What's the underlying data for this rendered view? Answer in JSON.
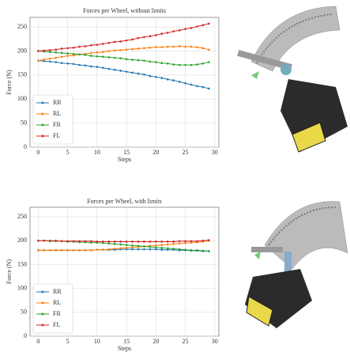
{
  "chart_data": [
    {
      "type": "line",
      "title": "Forces per Wheel, without limits",
      "x_label": "Steps",
      "y_label": "Force (N)",
      "x": [
        0,
        1,
        2,
        3,
        4,
        5,
        6,
        7,
        8,
        9,
        10,
        11,
        12,
        13,
        14,
        15,
        16,
        17,
        18,
        19,
        20,
        21,
        22,
        23,
        24,
        25,
        26,
        27,
        28,
        29
      ],
      "series": [
        {
          "name": "RR",
          "color": "#1f77b4",
          "values": [
            180,
            179,
            178,
            177,
            175,
            174,
            173,
            171,
            170,
            168,
            167,
            165,
            163,
            161,
            159,
            157,
            155,
            153,
            151,
            148,
            146,
            144,
            141,
            139,
            136,
            133,
            130,
            127,
            125,
            122
          ]
        },
        {
          "name": "RL",
          "color": "#ff7f0e",
          "values": [
            180,
            182,
            184,
            186,
            188,
            190,
            191,
            193,
            194,
            196,
            197,
            198,
            200,
            201,
            202,
            203,
            204,
            205,
            206,
            207,
            208,
            208,
            209,
            209,
            210,
            209,
            209,
            208,
            206,
            203
          ]
        },
        {
          "name": "FR",
          "color": "#2ca02c",
          "values": [
            200,
            199,
            198,
            197,
            196,
            195,
            194,
            193,
            192,
            190,
            189,
            188,
            187,
            186,
            185,
            183,
            182,
            181,
            180,
            178,
            177,
            175,
            174,
            172,
            171,
            171,
            171,
            172,
            174,
            177
          ]
        },
        {
          "name": "FL",
          "color": "#d62728",
          "values": [
            200,
            201,
            202,
            203,
            205,
            206,
            207,
            209,
            210,
            212,
            213,
            215,
            217,
            219,
            220,
            222,
            224,
            227,
            229,
            231,
            233,
            236,
            238,
            241,
            243,
            246,
            248,
            251,
            254,
            257
          ]
        }
      ],
      "xlim": [
        -1.4,
        30.7
      ],
      "ylim": [
        0,
        270
      ],
      "xticks": [
        0,
        5,
        10,
        15,
        20,
        25,
        30
      ],
      "yticks": [
        0,
        50,
        100,
        150,
        200,
        250
      ],
      "grid": true,
      "legend": "lower left"
    },
    {
      "type": "line",
      "title": "Forces per Wheel, with limits",
      "x_label": "Steps",
      "y_label": "Force (N)",
      "x": [
        0,
        1,
        2,
        3,
        4,
        5,
        6,
        7,
        8,
        9,
        10,
        11,
        12,
        13,
        14,
        15,
        16,
        17,
        18,
        19,
        20,
        21,
        22,
        23,
        24,
        25,
        26,
        27,
        28,
        29
      ],
      "series": [
        {
          "name": "RR",
          "color": "#1f77b4",
          "values": [
            180,
            180,
            180,
            180,
            180,
            180,
            180,
            180,
            180,
            180,
            181,
            181,
            181,
            181,
            182,
            182,
            182,
            182,
            182,
            182,
            182,
            181,
            181,
            181,
            180,
            180,
            179,
            179,
            178,
            178
          ]
        },
        {
          "name": "RL",
          "color": "#ff7f0e",
          "values": [
            180,
            180,
            180,
            180,
            180,
            180,
            180,
            180,
            180,
            180,
            181,
            181,
            182,
            183,
            184,
            185,
            186,
            187,
            188,
            189,
            190,
            191,
            192,
            193,
            194,
            195,
            196,
            197,
            198,
            200
          ]
        },
        {
          "name": "FR",
          "color": "#2ca02c",
          "values": [
            200,
            200,
            199,
            199,
            199,
            198,
            198,
            197,
            197,
            196,
            196,
            195,
            194,
            193,
            192,
            191,
            190,
            189,
            188,
            187,
            186,
            185,
            184,
            183,
            182,
            181,
            180,
            180,
            179,
            178
          ]
        },
        {
          "name": "FL",
          "color": "#d62728",
          "values": [
            200,
            200,
            200,
            200,
            199,
            199,
            199,
            199,
            199,
            199,
            198,
            198,
            198,
            198,
            198,
            198,
            198,
            198,
            198,
            198,
            198,
            198,
            198,
            198,
            199,
            199,
            199,
            199,
            200,
            201
          ]
        }
      ],
      "xlim": [
        -1.4,
        30.7
      ],
      "ylim": [
        0,
        270
      ],
      "xticks": [
        0,
        5,
        10,
        15,
        20,
        25,
        30
      ],
      "yticks": [
        0,
        50,
        100,
        150,
        200,
        250
      ],
      "grid": true,
      "legend": "lower left"
    }
  ]
}
